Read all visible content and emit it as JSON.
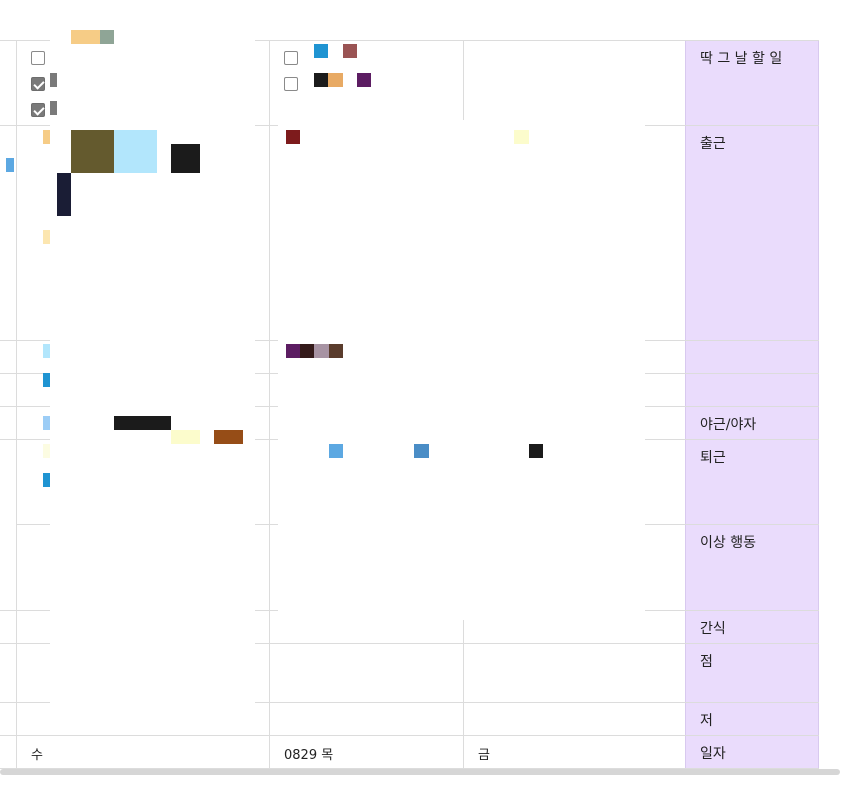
{
  "row_labels": {
    "todo": "딱 그 날 할 일",
    "arrival": "출근",
    "overtime": "야근/야자",
    "leave": "퇴근",
    "abnormal": "이상 행동",
    "snack": "간식",
    "lunch": "점",
    "dinner": "저",
    "date": "일자"
  },
  "dates": {
    "wed": "수",
    "thu": "0829 목",
    "fri": "금"
  },
  "checkboxes": {
    "wed": [
      false,
      true,
      true
    ],
    "thu": [
      false,
      false
    ]
  },
  "colors": {
    "label_column": "#eadcfc",
    "grid": "#dcdcdc",
    "checked_box": "#7a7a7a"
  }
}
